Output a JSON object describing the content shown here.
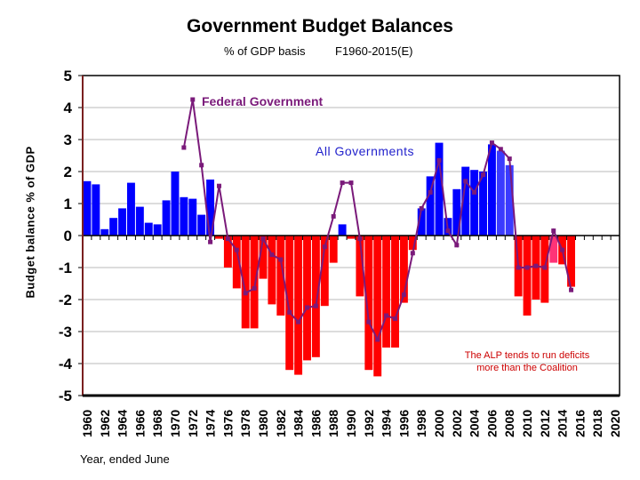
{
  "chart_data": {
    "type": "bar",
    "title": "Government Budget Balances",
    "subtitle_left": "% of GDP basis",
    "subtitle_right": "F1960-2015(E)",
    "ylabel": "Budget balance % of GDP",
    "xlabel": "Year, ended June",
    "ylim": [
      -5,
      5
    ],
    "yticks": [
      5,
      4,
      3,
      2,
      1,
      0,
      -1,
      -2,
      -3,
      -4,
      -5
    ],
    "xlim": [
      1960,
      2020
    ],
    "xtick_labels": [
      "1960",
      "1962",
      "1964",
      "1966",
      "1968",
      "1970",
      "1972",
      "1974",
      "1976",
      "1978",
      "1980",
      "1982",
      "1984",
      "1986",
      "1988",
      "1990",
      "1992",
      "1994",
      "1996",
      "1998",
      "2000",
      "2002",
      "2004",
      "2006",
      "2008",
      "2010",
      "2012",
      "2014",
      "2016",
      "2018",
      "2020"
    ],
    "grid": true,
    "colors": {
      "surplus": "#0000ff",
      "deficit": "#ff0000",
      "estimate_surplus": "#3b3bff",
      "estimate_deficit": "#ff3377",
      "line": "#7a1a7a",
      "annotation": "#cc0000"
    },
    "series": [
      {
        "name": "All Governments",
        "type": "bar",
        "x": [
          1960,
          1961,
          1962,
          1963,
          1964,
          1965,
          1966,
          1967,
          1968,
          1969,
          1970,
          1971,
          1972,
          1973,
          1974,
          1975,
          1976,
          1977,
          1978,
          1979,
          1980,
          1981,
          1982,
          1983,
          1984,
          1985,
          1986,
          1987,
          1988,
          1989,
          1990,
          1991,
          1992,
          1993,
          1994,
          1995,
          1996,
          1997,
          1998,
          1999,
          2000,
          2001,
          2002,
          2003,
          2004,
          2005,
          2006,
          2007,
          2008,
          2009,
          2010,
          2011,
          2012,
          2013,
          2014,
          2015
        ],
        "values": [
          1.7,
          1.6,
          0.2,
          0.55,
          0.85,
          1.65,
          0.9,
          0.4,
          0.35,
          1.1,
          2.0,
          1.2,
          1.15,
          0.65,
          1.75,
          -0.1,
          -1.0,
          -1.65,
          -2.9,
          -2.9,
          -1.35,
          -2.15,
          -2.5,
          -4.2,
          -4.35,
          -3.9,
          -3.8,
          -2.2,
          -0.85,
          0.35,
          -0.1,
          -1.9,
          -4.2,
          -4.4,
          -3.5,
          -3.5,
          -2.1,
          -0.45,
          0.85,
          1.85,
          2.9,
          0.55,
          1.45,
          2.15,
          2.05,
          2.0,
          2.85,
          2.65,
          2.2,
          -1.9,
          -2.5,
          -2.0,
          -2.1,
          -0.85,
          -0.9,
          -1.6
        ]
      },
      {
        "name": "Federal Government",
        "type": "line",
        "x": [
          1971,
          1972,
          1973,
          1974,
          1975,
          1976,
          1977,
          1978,
          1979,
          1980,
          1981,
          1982,
          1983,
          1984,
          1985,
          1986,
          1987,
          1988,
          1989,
          1990,
          1991,
          1992,
          1993,
          1994,
          1995,
          1996,
          1997,
          1998,
          1999,
          2000,
          2001,
          2002,
          2003,
          2004,
          2005,
          2006,
          2007,
          2008,
          2009,
          2010,
          2011,
          2012,
          2013,
          2014,
          2015
        ],
        "values": [
          2.75,
          4.25,
          2.2,
          -0.2,
          1.55,
          -0.1,
          -0.45,
          -1.8,
          -1.65,
          -0.1,
          -0.6,
          -0.75,
          -2.4,
          -2.7,
          -2.25,
          -2.2,
          -0.35,
          0.6,
          1.65,
          1.65,
          -0.1,
          -2.7,
          -3.25,
          -2.5,
          -2.6,
          -1.85,
          -0.55,
          0.85,
          1.35,
          2.35,
          0.15,
          -0.3,
          1.7,
          1.35,
          1.9,
          2.9,
          2.7,
          2.4,
          -1.0,
          -1.0,
          -0.95,
          -1.0,
          0.15,
          -0.45,
          -1.7
        ]
      }
    ],
    "annotations": [
      "The ALP tends to run deficits",
      "more than the Coalition"
    ]
  }
}
